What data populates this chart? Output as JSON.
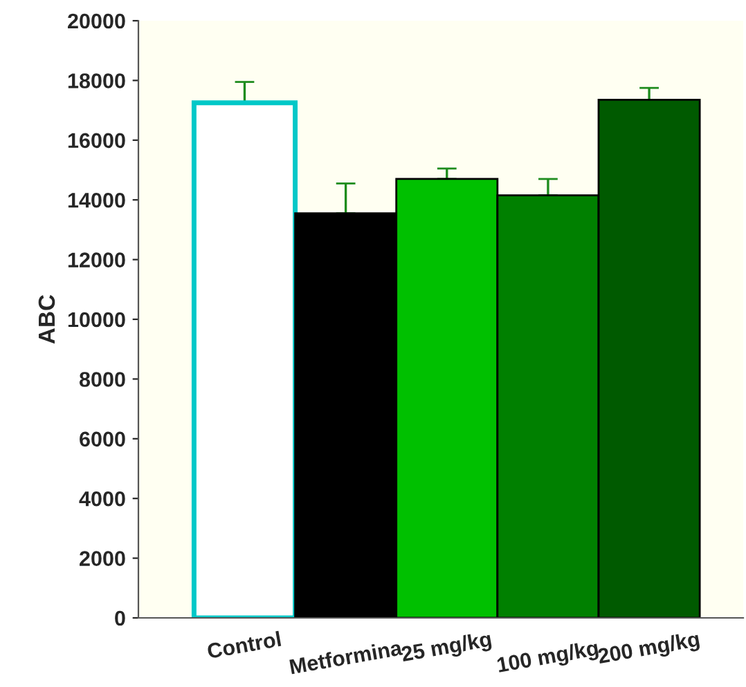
{
  "chart_data": {
    "type": "bar",
    "ylabel": "ABC",
    "categories": [
      "Control",
      "Metformina",
      "25 mg/kg",
      "100 mg/kg",
      "200 mg/kg"
    ],
    "values": [
      17250,
      13550,
      14700,
      14150,
      17350
    ],
    "colors": [
      "#ffffff",
      "#000000",
      "#00c000",
      "#008000",
      "#005a00"
    ],
    "errors": [
      [
        17250,
        17950
      ],
      [
        13550,
        14550
      ],
      [
        14700,
        15050
      ],
      [
        14150,
        14700
      ],
      [
        17350,
        17750
      ]
    ],
    "ylim": [
      0,
      20000
    ],
    "yticks": [
      0,
      2000,
      4000,
      6000,
      8000,
      10000,
      12000,
      14000,
      16000,
      18000,
      20000
    ],
    "grid": false
  }
}
